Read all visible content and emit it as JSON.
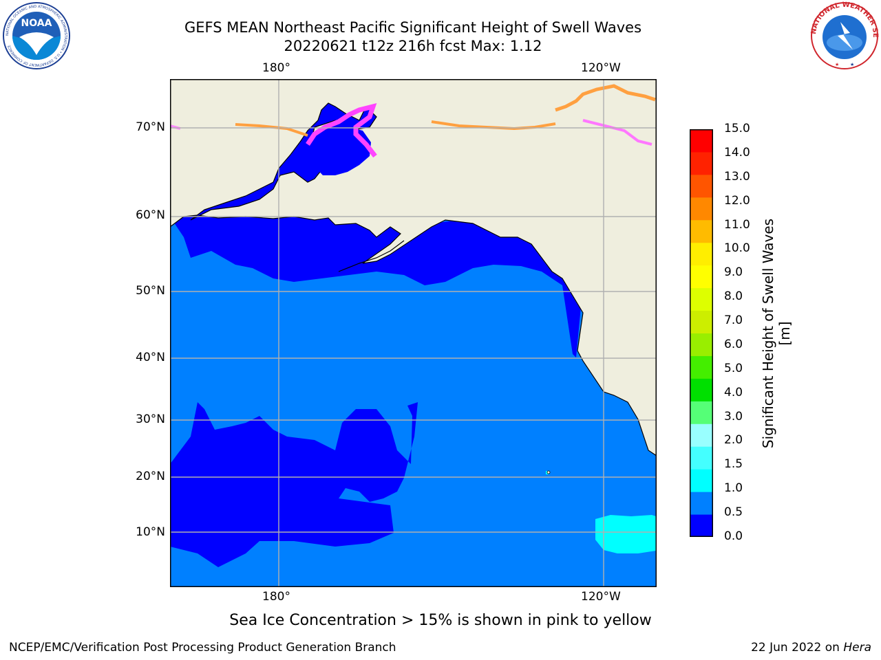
{
  "header": {
    "title_line1": "GEFS MEAN Northeast Pacific Significant Height of Swell Waves",
    "title_line2": "20220621 t12z 216h fcst   Max: 1.12"
  },
  "map": {
    "lon_labels_top": [
      "180°",
      "120°W"
    ],
    "lon_labels_bottom": [
      "180°",
      "120°W"
    ],
    "lat_labels": [
      "70°N",
      "60°N",
      "50°N",
      "40°N",
      "30°N",
      "20°N",
      "10°N"
    ],
    "colors": {
      "land": "#efeede",
      "ocean_0_05": "#0000ff",
      "ocean_05_1": "#0080ff",
      "ocean_1_15": "#00ffff",
      "ice_pink": "#ff44ff",
      "ice_orange": "#ffa040",
      "grid": "#b0b0b0",
      "coast": "#000000"
    }
  },
  "colorbar": {
    "title": "Significant Height of Swell Waves [m]",
    "ticks": [
      "15.0",
      "14.0",
      "13.0",
      "12.0",
      "11.0",
      "10.0",
      "9.0",
      "8.0",
      "7.0",
      "6.0",
      "5.0",
      "4.0",
      "3.0",
      "2.0",
      "1.5",
      "1.0",
      "0.5",
      "0.0"
    ],
    "colors_bottom_to_top": [
      "#0000ff",
      "#0080ff",
      "#00ffff",
      "#44ffff",
      "#99ffff",
      "#55ff77",
      "#00e000",
      "#44ee00",
      "#99ee00",
      "#ccee00",
      "#ddff00",
      "#ffff00",
      "#ffee00",
      "#ffbb00",
      "#ff8800",
      "#ff5500",
      "#ff2200",
      "#ff0000"
    ]
  },
  "ice_note": "Sea Ice Concentration > 15% is shown in pink to yellow",
  "footer": {
    "left": "NCEP/EMC/Verification Post Processing Product Generation Branch",
    "right_date": "22 Jun 2022 on ",
    "right_machine": "Hera"
  },
  "logos": {
    "left": "NOAA",
    "left_ring": "NATIONAL OCEANIC AND ATMOSPHERIC ADMINISTRATION • U.S. DEPARTMENT OF COMMERCE",
    "right_ring": "NATIONAL WEATHER SERVICE"
  }
}
